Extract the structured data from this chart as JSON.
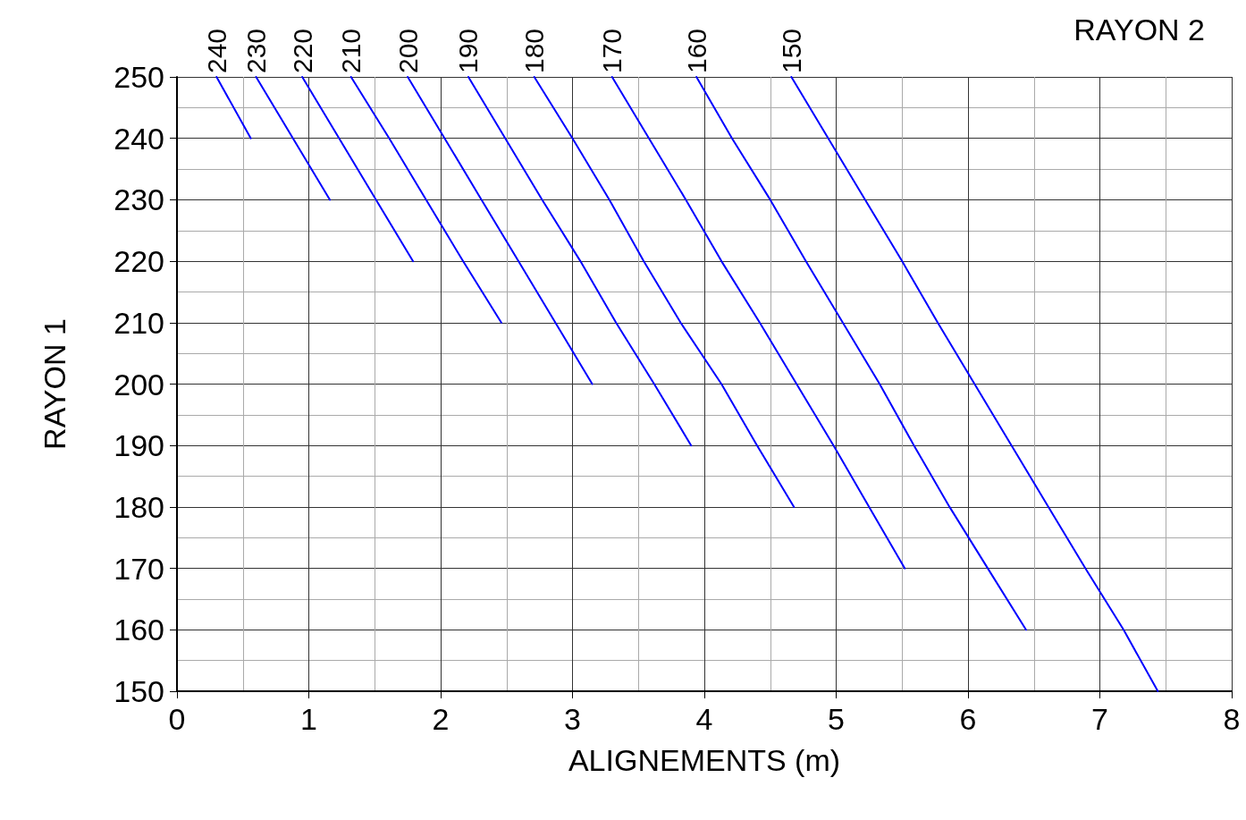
{
  "chart_data": {
    "type": "line",
    "xlabel": "ALIGNEMENTS (m)",
    "ylabel": "RAYON 1",
    "legend_title": "RAYON 2",
    "xlim": [
      0,
      8
    ],
    "xticks": [
      0,
      1,
      2,
      3,
      4,
      5,
      6,
      7,
      8
    ],
    "ylim": [
      150,
      250
    ],
    "yticks": [
      150,
      160,
      170,
      180,
      190,
      200,
      210,
      220,
      230,
      240,
      250
    ],
    "grid": true,
    "marker": "none",
    "line_style": "solid",
    "legend": false,
    "series": [
      {
        "name": "240",
        "color": "#0000ff",
        "x": [
          0.3,
          0.56
        ],
        "values": [
          250,
          240
        ]
      },
      {
        "name": "230",
        "color": "#0000ff",
        "x": [
          0.6,
          0.88,
          1.16
        ],
        "values": [
          250,
          240,
          230
        ]
      },
      {
        "name": "220",
        "color": "#0000ff",
        "x": [
          0.95,
          1.23,
          1.51,
          1.79
        ],
        "values": [
          250,
          240,
          230,
          220
        ]
      },
      {
        "name": "210",
        "color": "#0000ff",
        "x": [
          1.32,
          1.61,
          1.89,
          2.17,
          2.46
        ],
        "values": [
          250,
          240,
          230,
          220,
          210
        ]
      },
      {
        "name": "200",
        "color": "#0000ff",
        "x": [
          1.75,
          2.03,
          2.31,
          2.59,
          2.87,
          3.15
        ],
        "values": [
          250,
          240,
          230,
          220,
          210,
          200
        ]
      },
      {
        "name": "190",
        "color": "#0000ff",
        "x": [
          2.21,
          2.49,
          2.77,
          3.06,
          3.33,
          3.62,
          3.9
        ],
        "values": [
          250,
          240,
          230,
          220,
          210,
          200,
          190
        ]
      },
      {
        "name": "180",
        "color": "#0000ff",
        "x": [
          2.71,
          3.0,
          3.28,
          3.54,
          3.82,
          4.13,
          4.4,
          4.68
        ],
        "values": [
          250,
          240,
          230,
          220,
          210,
          200,
          190,
          180
        ]
      },
      {
        "name": "170",
        "color": "#0000ff",
        "x": [
          3.3,
          3.58,
          3.86,
          4.13,
          4.42,
          4.7,
          4.98,
          5.25,
          5.52
        ],
        "values": [
          250,
          240,
          230,
          220,
          210,
          200,
          190,
          180,
          170
        ]
      },
      {
        "name": "160",
        "color": "#0000ff",
        "x": [
          3.94,
          4.21,
          4.5,
          4.77,
          5.05,
          5.33,
          5.59,
          5.86,
          6.15,
          6.44
        ],
        "values": [
          250,
          240,
          230,
          220,
          210,
          200,
          190,
          180,
          170,
          160
        ]
      },
      {
        "name": "150",
        "color": "#0000ff",
        "x": [
          4.66,
          4.94,
          5.22,
          5.5,
          5.77,
          6.05,
          6.33,
          6.61,
          6.89,
          7.18,
          7.44
        ],
        "values": [
          250,
          240,
          230,
          220,
          210,
          200,
          190,
          180,
          170,
          160,
          150
        ]
      }
    ]
  }
}
